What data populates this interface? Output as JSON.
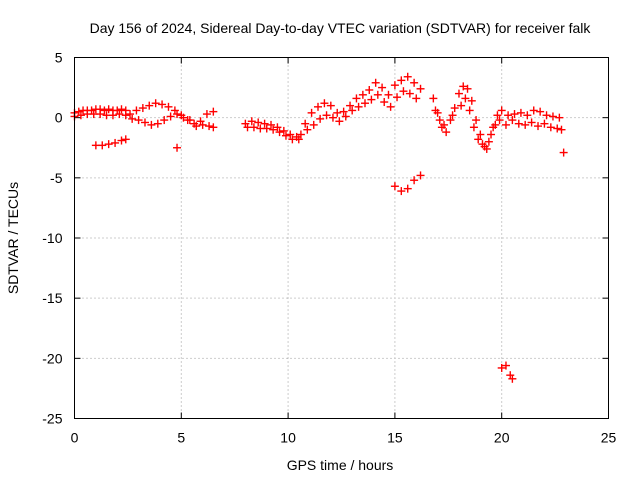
{
  "chart_data": {
    "type": "scatter",
    "title": "Day 156 of 2024, Sidereal Day-to-day VTEC variation (SDTVAR) for receiver falk",
    "xlabel": "GPS time / hours",
    "ylabel": "SDTVAR / TECUs",
    "xlim": [
      0,
      25
    ],
    "ylim": [
      -25,
      5
    ],
    "xticks": [
      0,
      5,
      10,
      15,
      20,
      25
    ],
    "yticks": [
      5,
      0,
      -5,
      -10,
      -15,
      -20,
      -25
    ],
    "grid": true,
    "marker": "plus",
    "color": "#ff0000",
    "series": [
      {
        "name": "SDTVAR",
        "points": [
          [
            0.0,
            0.4
          ],
          [
            0.2,
            0.5
          ],
          [
            0.4,
            0.6
          ],
          [
            0.6,
            0.6
          ],
          [
            0.8,
            0.6
          ],
          [
            1.0,
            0.7
          ],
          [
            1.2,
            0.7
          ],
          [
            1.4,
            0.6
          ],
          [
            1.6,
            0.7
          ],
          [
            1.8,
            0.6
          ],
          [
            2.0,
            0.6
          ],
          [
            2.2,
            0.7
          ],
          [
            2.4,
            0.6
          ],
          [
            0.0,
            0.1
          ],
          [
            0.3,
            0.2
          ],
          [
            0.6,
            0.3
          ],
          [
            0.9,
            0.3
          ],
          [
            1.2,
            0.3
          ],
          [
            1.5,
            0.2
          ],
          [
            1.8,
            0.2
          ],
          [
            2.1,
            0.3
          ],
          [
            2.4,
            0.2
          ],
          [
            1.0,
            -2.3
          ],
          [
            1.3,
            -2.3
          ],
          [
            1.6,
            -2.2
          ],
          [
            1.9,
            -2.1
          ],
          [
            2.2,
            -1.9
          ],
          [
            2.4,
            -1.8
          ],
          [
            2.6,
            0.3
          ],
          [
            2.9,
            0.6
          ],
          [
            3.2,
            0.8
          ],
          [
            3.5,
            1.0
          ],
          [
            3.8,
            1.2
          ],
          [
            4.1,
            1.1
          ],
          [
            4.4,
            0.9
          ],
          [
            4.7,
            0.6
          ],
          [
            5.0,
            0.2
          ],
          [
            5.3,
            -0.2
          ],
          [
            5.6,
            -0.5
          ],
          [
            5.9,
            -0.3
          ],
          [
            6.2,
            0.3
          ],
          [
            6.5,
            0.5
          ],
          [
            2.7,
            -0.1
          ],
          [
            3.0,
            -0.2
          ],
          [
            3.3,
            -0.4
          ],
          [
            3.6,
            -0.6
          ],
          [
            3.9,
            -0.5
          ],
          [
            4.2,
            -0.2
          ],
          [
            4.5,
            0.1
          ],
          [
            4.8,
            0.3
          ],
          [
            5.1,
            0.0
          ],
          [
            5.4,
            -0.2
          ],
          [
            5.7,
            -0.7
          ],
          [
            6.0,
            -0.6
          ],
          [
            6.3,
            -0.7
          ],
          [
            6.5,
            -0.8
          ],
          [
            4.8,
            -2.5
          ],
          [
            8.0,
            -0.5
          ],
          [
            8.3,
            -0.3
          ],
          [
            8.6,
            -0.4
          ],
          [
            8.9,
            -0.5
          ],
          [
            9.2,
            -0.6
          ],
          [
            9.5,
            -0.8
          ],
          [
            9.8,
            -1.1
          ],
          [
            10.1,
            -1.4
          ],
          [
            10.4,
            -1.6
          ],
          [
            10.6,
            -1.4
          ],
          [
            8.1,
            -0.8
          ],
          [
            8.4,
            -0.8
          ],
          [
            8.7,
            -0.9
          ],
          [
            9.0,
            -0.9
          ],
          [
            9.3,
            -1.0
          ],
          [
            9.6,
            -1.2
          ],
          [
            9.9,
            -1.5
          ],
          [
            10.2,
            -1.8
          ],
          [
            10.5,
            -1.8
          ],
          [
            10.8,
            -0.5
          ],
          [
            11.1,
            0.4
          ],
          [
            11.4,
            0.9
          ],
          [
            11.7,
            1.2
          ],
          [
            12.0,
            1.0
          ],
          [
            12.3,
            0.4
          ],
          [
            12.6,
            0.5
          ],
          [
            12.9,
            1.0
          ],
          [
            13.2,
            1.6
          ],
          [
            13.5,
            1.9
          ],
          [
            13.8,
            2.3
          ],
          [
            14.1,
            2.9
          ],
          [
            14.4,
            2.5
          ],
          [
            14.7,
            1.9
          ],
          [
            15.0,
            2.7
          ],
          [
            15.3,
            3.1
          ],
          [
            15.6,
            3.4
          ],
          [
            15.9,
            2.9
          ],
          [
            16.2,
            2.4
          ],
          [
            10.9,
            -1.0
          ],
          [
            11.2,
            -0.6
          ],
          [
            11.5,
            -0.1
          ],
          [
            11.8,
            0.2
          ],
          [
            12.1,
            0.0
          ],
          [
            12.4,
            -0.3
          ],
          [
            12.7,
            0.1
          ],
          [
            13.0,
            0.6
          ],
          [
            13.3,
            0.9
          ],
          [
            13.6,
            1.2
          ],
          [
            13.9,
            1.5
          ],
          [
            14.2,
            1.9
          ],
          [
            14.5,
            1.3
          ],
          [
            14.8,
            0.9
          ],
          [
            15.1,
            1.7
          ],
          [
            15.4,
            2.2
          ],
          [
            15.7,
            2.0
          ],
          [
            16.0,
            1.6
          ],
          [
            15.0,
            -5.7
          ],
          [
            15.3,
            -6.1
          ],
          [
            15.6,
            -5.9
          ],
          [
            15.9,
            -5.2
          ],
          [
            16.2,
            -4.8
          ],
          [
            16.8,
            1.6
          ],
          [
            17.0,
            0.4
          ],
          [
            17.2,
            -0.8
          ],
          [
            17.4,
            -1.2
          ],
          [
            17.6,
            -0.2
          ],
          [
            17.8,
            0.8
          ],
          [
            18.0,
            2.0
          ],
          [
            18.2,
            2.6
          ],
          [
            18.4,
            2.4
          ],
          [
            18.6,
            1.4
          ],
          [
            18.8,
            -0.2
          ],
          [
            19.0,
            -1.4
          ],
          [
            19.2,
            -2.4
          ],
          [
            19.4,
            -2.0
          ],
          [
            19.6,
            -0.8
          ],
          [
            19.8,
            0.2
          ],
          [
            20.0,
            0.6
          ],
          [
            20.3,
            0.2
          ],
          [
            20.6,
            0.3
          ],
          [
            20.9,
            0.4
          ],
          [
            21.2,
            0.2
          ],
          [
            21.5,
            0.6
          ],
          [
            21.8,
            0.5
          ],
          [
            22.1,
            0.2
          ],
          [
            22.4,
            0.1
          ],
          [
            22.7,
            0.0
          ],
          [
            16.9,
            0.6
          ],
          [
            17.1,
            -0.2
          ],
          [
            17.3,
            -0.6
          ],
          [
            17.7,
            0.2
          ],
          [
            18.1,
            1.0
          ],
          [
            18.3,
            1.6
          ],
          [
            18.5,
            0.6
          ],
          [
            18.7,
            -0.8
          ],
          [
            18.9,
            -1.8
          ],
          [
            19.1,
            -2.2
          ],
          [
            19.3,
            -2.6
          ],
          [
            19.5,
            -1.4
          ],
          [
            19.7,
            -0.6
          ],
          [
            19.9,
            -0.2
          ],
          [
            20.2,
            -0.6
          ],
          [
            20.5,
            -0.2
          ],
          [
            20.8,
            -0.5
          ],
          [
            21.1,
            -0.6
          ],
          [
            21.4,
            -0.4
          ],
          [
            21.7,
            -0.7
          ],
          [
            22.0,
            -0.5
          ],
          [
            22.3,
            -0.8
          ],
          [
            22.6,
            -0.9
          ],
          [
            22.8,
            -1.0
          ],
          [
            20.0,
            -20.8
          ],
          [
            20.2,
            -20.6
          ],
          [
            20.4,
            -21.4
          ],
          [
            20.5,
            -21.7
          ],
          [
            22.9,
            -2.9
          ]
        ]
      }
    ]
  }
}
